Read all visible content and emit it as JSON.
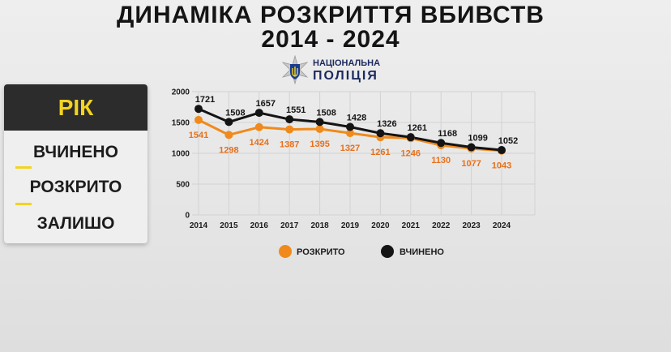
{
  "header": {
    "title_line1": "ДИНАМІКА РОЗКРИТТЯ ВБИВСТВ",
    "title_line2": "2014 - 2024"
  },
  "logo": {
    "line1": "НАЦІОНАЛЬНА",
    "line2": "ПОЛІЦІЯ",
    "icon": "police-emblem-icon"
  },
  "side_legend": {
    "heading": "РІК",
    "items": [
      "ВЧИНЕНО",
      "РОЗКРИТО",
      "ЗАЛИШО"
    ]
  },
  "colors": {
    "committed": "#141414",
    "solved": "#f08a1c",
    "accent": "#f3d321",
    "header_bg": "#2c2c2c"
  },
  "chart_data": {
    "type": "line",
    "x": [
      "2014",
      "2015",
      "2016",
      "2017",
      "2018",
      "2019",
      "2020",
      "2021",
      "2022",
      "2023",
      "2024"
    ],
    "ylim": [
      0,
      2000
    ],
    "yticks": [
      0,
      500,
      1000,
      1500,
      2000
    ],
    "grid": true,
    "legend_position": "bottom",
    "series": [
      {
        "name": "ВЧИНЕНО",
        "color": "#141414",
        "values": [
          1721,
          1508,
          1657,
          1551,
          1508,
          1428,
          1326,
          1261,
          1168,
          1099,
          1052
        ]
      },
      {
        "name": "РОЗКРИТО",
        "color": "#f08a1c",
        "values": [
          1541,
          1298,
          1424,
          1387,
          1395,
          1327,
          1261,
          1246,
          1130,
          1077,
          1043
        ]
      }
    ]
  }
}
